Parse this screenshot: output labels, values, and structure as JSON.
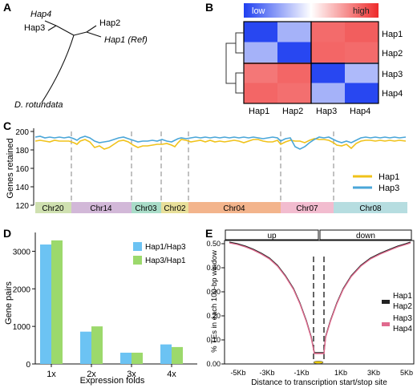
{
  "panels": {
    "A": {
      "label": "A",
      "tips": [
        "Hap4",
        "Hap3",
        "Hap2",
        "Hap1 (Ref)",
        "D. rotundata"
      ]
    },
    "B": {
      "label": "B",
      "legend_low": "low",
      "legend_high": "high",
      "row_labels": [
        "Hap1",
        "Hap2",
        "Hap3",
        "Hap4"
      ],
      "col_labels": [
        "Hap1",
        "Hap2",
        "Hap3",
        "Hap4"
      ],
      "colors": {
        "low": "#1f3ff0",
        "high": "#ee2b2b"
      }
    },
    "C": {
      "label": "C",
      "ylabel": "Genes retained",
      "y_ticks": [
        "200",
        "180",
        "160",
        "140",
        "120"
      ],
      "legend": [
        "Hap1",
        "Hap3"
      ],
      "chromosomes": [
        {
          "name": "Chr20",
          "color": "#cfe0b0"
        },
        {
          "name": "Chr14",
          "color": "#d2b8d8"
        },
        {
          "name": "Chr03",
          "color": "#a9dcc8"
        },
        {
          "name": "Chr02",
          "color": "#e8df9a"
        },
        {
          "name": "Chr04",
          "color": "#f3b48c"
        },
        {
          "name": "Chr07",
          "color": "#f2bccf"
        },
        {
          "name": "Chr08",
          "color": "#b6dde0"
        }
      ],
      "colors": {
        "Hap1": "#f0c21a",
        "Hap3": "#4aa6d8"
      }
    },
    "D": {
      "label": "D",
      "ylabel": "Gene pairs",
      "xlabel": "Expression folds"
    },
    "E": {
      "label": "E",
      "ylabel": "% TEs in each 100-bp window",
      "xlabel": "Distance to transcription start/stop site",
      "up_label": "up",
      "down_label": "down",
      "y_ticks": [
        "0.50",
        "0.40",
        "0.30",
        "0.20",
        "0.10",
        "0.00"
      ],
      "x_ticks": [
        "-5Kb",
        "-3Kb",
        "-1Kb",
        "1Kb",
        "3Kb",
        "5Kb"
      ],
      "legend": [
        {
          "lines": [
            "Hap1",
            "Hap2"
          ],
          "color": "#222222"
        },
        {
          "lines": [
            "Hap3",
            "Hap4"
          ],
          "color": "#e06a8e"
        }
      ]
    }
  },
  "chart_data": [
    {
      "panel": "B",
      "type": "heatmap",
      "rows": [
        "Hap1",
        "Hap2",
        "Hap3",
        "Hap4"
      ],
      "cols": [
        "Hap1",
        "Hap2",
        "Hap3",
        "Hap4"
      ],
      "values": [
        [
          0.02,
          0.3,
          0.85,
          0.88
        ],
        [
          0.3,
          0.02,
          0.86,
          0.85
        ],
        [
          0.82,
          0.86,
          0.02,
          0.32
        ],
        [
          0.86,
          0.84,
          0.3,
          0.02
        ]
      ],
      "color_scale": [
        "low",
        "high"
      ]
    },
    {
      "panel": "D",
      "type": "bar",
      "categories": [
        "1x",
        "2x",
        "3x",
        "4x"
      ],
      "ylim": [
        0,
        3500
      ],
      "y_ticks": [
        0,
        1000,
        2000,
        3000
      ],
      "series": [
        {
          "name": "Hap1/Hap3",
          "color": "#6cc3f3",
          "values": [
            3180,
            860,
            300,
            520
          ]
        },
        {
          "name": "Hap3/Hap1",
          "color": "#9cd96c",
          "values": [
            3290,
            1000,
            300,
            450
          ]
        }
      ]
    }
  ]
}
